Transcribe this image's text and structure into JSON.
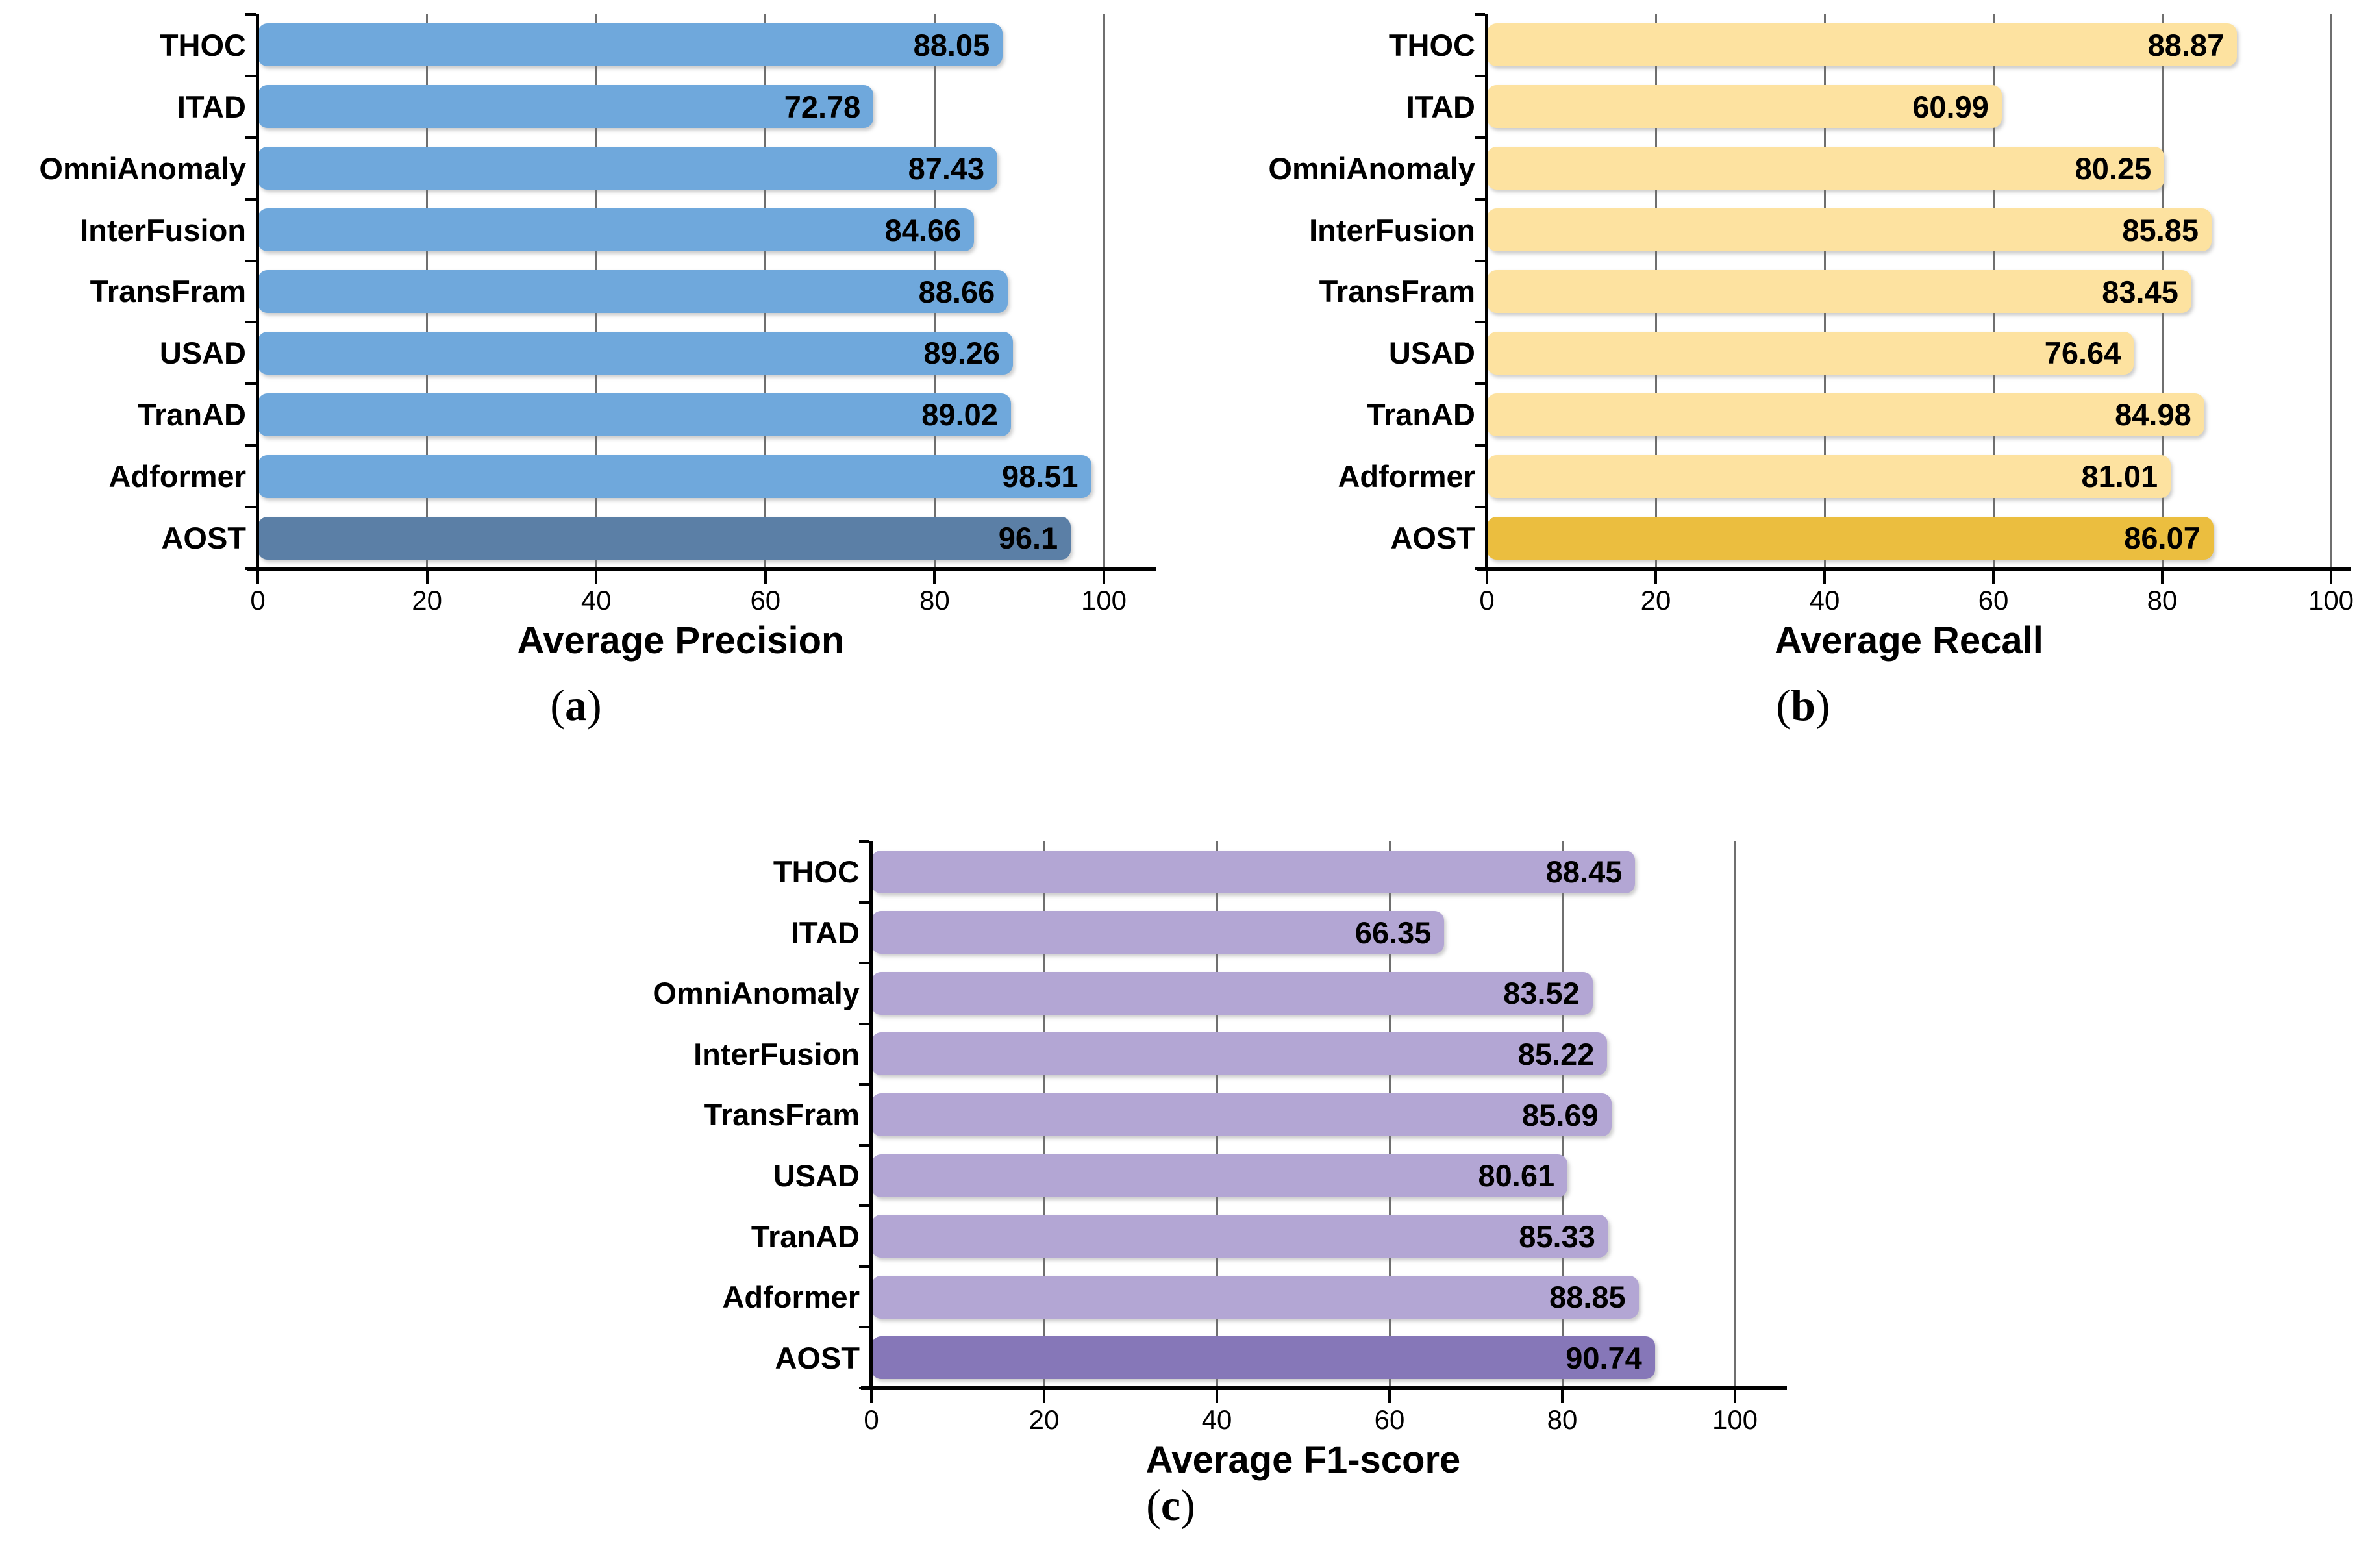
{
  "figure": {
    "background": "#ffffff",
    "text_color": "#000000",
    "gridline_color": "#6f6f6f",
    "axis_color": "#000000"
  },
  "chart_data": [
    {
      "id": "a",
      "type": "bar",
      "orientation": "horizontal",
      "xlabel": "Average Precision",
      "caption": {
        "open": "(",
        "letter": "a",
        "close": ")"
      },
      "xlim": [
        0,
        100
      ],
      "xticks": [
        "0",
        "20",
        "40",
        "60",
        "80",
        "100"
      ],
      "grid": true,
      "bar_color": "#6FA8DC",
      "highlight_color": "#5B7FA6",
      "highlight_category": "AOST",
      "categories": [
        "THOC",
        "ITAD",
        "OmniAnomaly",
        "InterFusion",
        "TransFram",
        "USAD",
        "TranAD",
        "Adformer",
        "AOST"
      ],
      "values": [
        88.05,
        72.78,
        87.43,
        84.66,
        88.66,
        89.26,
        89.02,
        98.51,
        96.1
      ],
      "value_labels": [
        "88.05",
        "72.78",
        "87.43",
        "84.66",
        "88.66",
        "89.26",
        "89.02",
        "98.51",
        "96.1"
      ]
    },
    {
      "id": "b",
      "type": "bar",
      "orientation": "horizontal",
      "xlabel": "Average Recall",
      "caption": {
        "open": "(",
        "letter": "b",
        "close": ")"
      },
      "xlim": [
        0,
        100
      ],
      "xticks": [
        "0",
        "20",
        "40",
        "60",
        "80",
        "100"
      ],
      "grid": true,
      "bar_color": "#FDE2A0",
      "highlight_color": "#EBBE3F",
      "highlight_category": "AOST",
      "categories": [
        "THOC",
        "ITAD",
        "OmniAnomaly",
        "InterFusion",
        "TransFram",
        "USAD",
        "TranAD",
        "Adformer",
        "AOST"
      ],
      "values": [
        88.87,
        60.99,
        80.25,
        85.85,
        83.45,
        76.64,
        84.98,
        81.01,
        86.07
      ],
      "value_labels": [
        "88.87",
        "60.99",
        "80.25",
        "85.85",
        "83.45",
        "76.64",
        "84.98",
        "81.01",
        "86.07"
      ]
    },
    {
      "id": "c",
      "type": "bar",
      "orientation": "horizontal",
      "xlabel": "Average F1-score",
      "caption": {
        "open": "(",
        "letter": "c",
        "close": ")"
      },
      "xlim": [
        0,
        100
      ],
      "xticks": [
        "0",
        "20",
        "40",
        "60",
        "80",
        "100"
      ],
      "grid": true,
      "bar_color": "#B3A6D4",
      "highlight_color": "#8677B8",
      "highlight_category": "AOST",
      "categories": [
        "THOC",
        "ITAD",
        "OmniAnomaly",
        "InterFusion",
        "TransFram",
        "USAD",
        "TranAD",
        "Adformer",
        "AOST"
      ],
      "values": [
        88.45,
        66.35,
        83.52,
        85.22,
        85.69,
        80.61,
        85.33,
        88.85,
        90.74
      ],
      "value_labels": [
        "88.45",
        "66.35",
        "83.52",
        "85.22",
        "85.69",
        "80.61",
        "85.33",
        "88.85",
        "90.74"
      ]
    }
  ]
}
